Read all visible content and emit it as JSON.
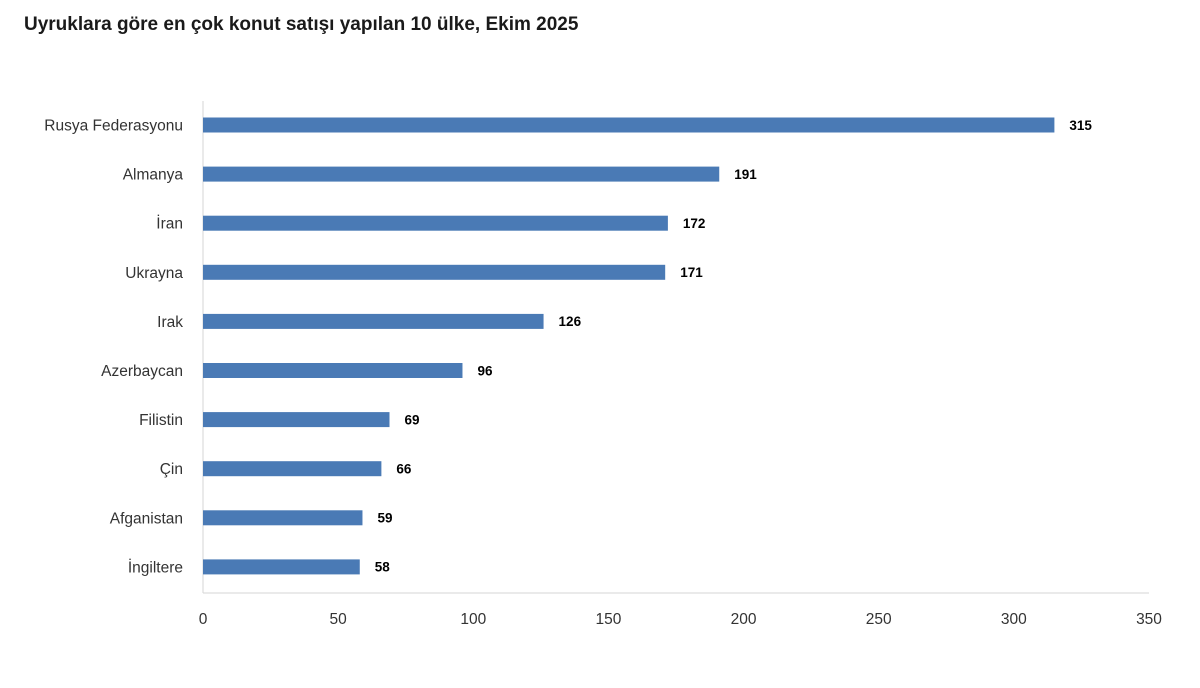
{
  "title": "Uyruklara göre en çok konut satışı yapılan 10 ülke, Ekim 2025",
  "chart_data": {
    "type": "bar",
    "orientation": "horizontal",
    "title": "Uyruklara göre en çok konut satışı yapılan 10 ülke, Ekim 2025",
    "xlabel": "",
    "ylabel": "",
    "categories": [
      "Rusya Federasyonu",
      "Almanya",
      "İran",
      "Ukrayna",
      "Irak",
      "Azerbaycan",
      "Filistin",
      "Çin",
      "Afganistan",
      "İngiltere"
    ],
    "values": [
      315,
      191,
      172,
      171,
      126,
      96,
      69,
      66,
      59,
      58
    ],
    "xlim": [
      0,
      350
    ],
    "xticks": [
      0,
      50,
      100,
      150,
      200,
      250,
      300,
      350
    ],
    "data_labels": true,
    "grid": false,
    "legend": "none",
    "bar_color": "#4a7ab5"
  }
}
